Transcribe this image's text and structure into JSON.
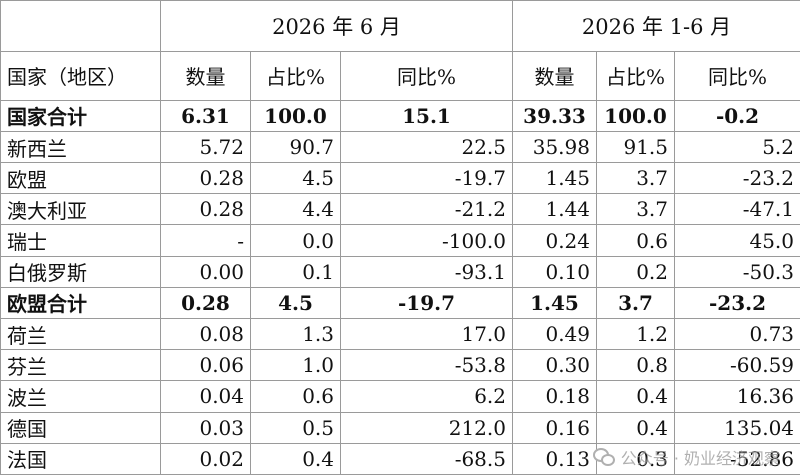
{
  "header": {
    "period_1": "2026 年 6 月",
    "period_2": "2026 年 1-6 月",
    "country_label": "国家（地区）",
    "col_qty": "数量",
    "col_share": "占比%",
    "col_yoy": "同比%"
  },
  "rows": [
    {
      "name": "国家合计",
      "q1": "6.31",
      "s1": "100.0",
      "y1": "15.1",
      "q2": "39.33",
      "s2": "100.0",
      "y2": "-0.2"
    },
    {
      "name": "新西兰",
      "q1": "5.72",
      "s1": "90.7",
      "y1": "22.5",
      "q2": "35.98",
      "s2": "91.5",
      "y2": "5.2"
    },
    {
      "name": "欧盟",
      "q1": "0.28",
      "s1": "4.5",
      "y1": "-19.7",
      "q2": "1.45",
      "s2": "3.7",
      "y2": "-23.2"
    },
    {
      "name": "澳大利亚",
      "q1": "0.28",
      "s1": "4.4",
      "y1": "-21.2",
      "q2": "1.44",
      "s2": "3.7",
      "y2": "-47.1"
    },
    {
      "name": "瑞士",
      "q1": "-",
      "s1": "0.0",
      "y1": "-100.0",
      "q2": "0.24",
      "s2": "0.6",
      "y2": "45.0"
    },
    {
      "name": "白俄罗斯",
      "q1": "0.00",
      "s1": "0.1",
      "y1": "-93.1",
      "q2": "0.10",
      "s2": "0.2",
      "y2": "-50.3"
    },
    {
      "name": "欧盟合计",
      "q1": "0.28",
      "s1": "4.5",
      "y1": "-19.7",
      "q2": "1.45",
      "s2": "3.7",
      "y2": "-23.2"
    },
    {
      "name": "荷兰",
      "q1": "0.08",
      "s1": "1.3",
      "y1": "17.0",
      "q2": "0.49",
      "s2": "1.2",
      "y2": "0.73"
    },
    {
      "name": "芬兰",
      "q1": "0.06",
      "s1": "1.0",
      "y1": "-53.8",
      "q2": "0.30",
      "s2": "0.8",
      "y2": "-60.59"
    },
    {
      "name": "波兰",
      "q1": "0.04",
      "s1": "0.6",
      "y1": "6.2",
      "q2": "0.18",
      "s2": "0.4",
      "y2": "16.36"
    },
    {
      "name": "德国",
      "q1": "0.03",
      "s1": "0.5",
      "y1": "212.0",
      "q2": "0.16",
      "s2": "0.4",
      "y2": "135.04"
    },
    {
      "name": "法国",
      "q1": "0.02",
      "s1": "0.4",
      "y1": "-68.5",
      "q2": "0.13",
      "s2": "0.3",
      "y2": "-52.86"
    }
  ],
  "watermark": "公众号 · 奶业经济观察"
}
